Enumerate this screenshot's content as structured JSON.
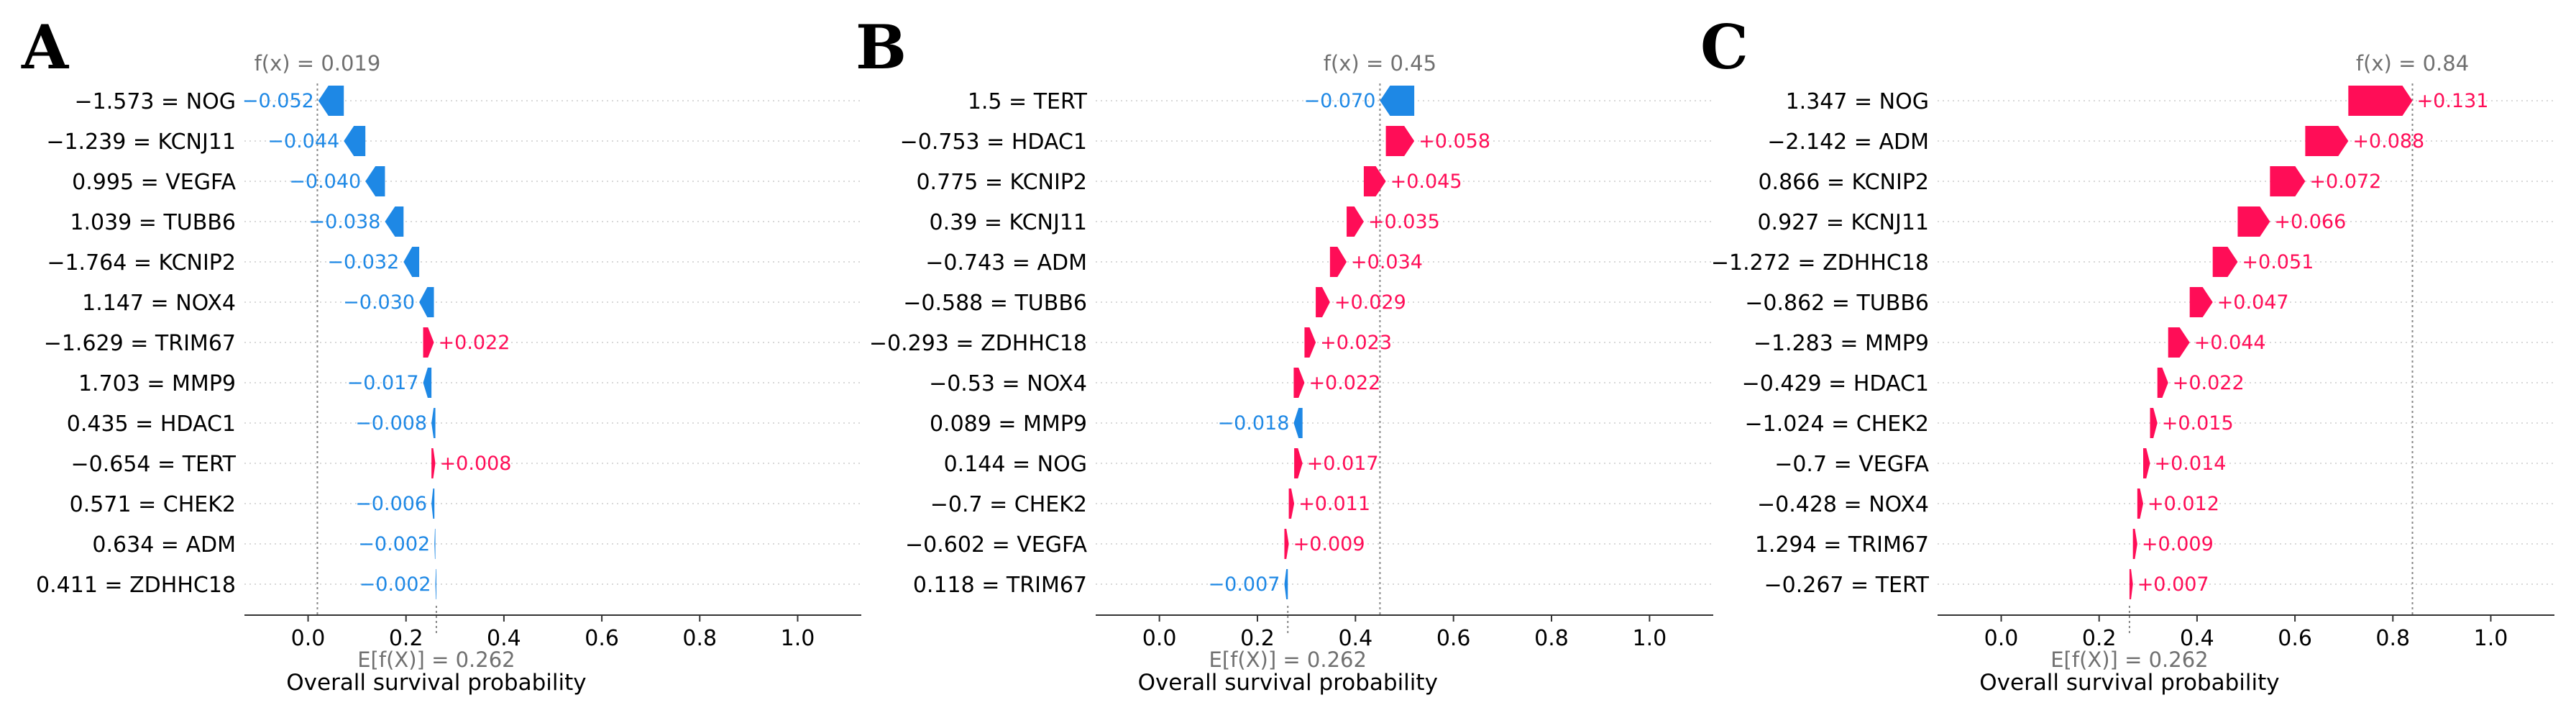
{
  "figure": {
    "panel_letters": [
      "A",
      "B",
      "C"
    ],
    "colors": {
      "positive": "#ff0d57",
      "negative": "#1e88e5",
      "axis": "#333333",
      "grid": "#dddddd",
      "label": "#000000",
      "annotation": "#707070"
    }
  },
  "chart_data": [
    {
      "type": "waterfall",
      "panel": "A",
      "fx_label": "f(x) = 0.019",
      "fx": 0.019,
      "base_label": "E[f(X)] = 0.262",
      "base": 0.262,
      "xlabel": "Overall survival probability",
      "xlim": [
        -0.13,
        1.13
      ],
      "xticks": [
        0.0,
        0.2,
        0.4,
        0.6,
        0.8,
        1.0
      ],
      "xtick_labels": [
        "0.0",
        "0.2",
        "0.4",
        "0.6",
        "0.8",
        "1.0"
      ],
      "features": [
        {
          "label": "−1.573 = NOG",
          "value": -0.052,
          "text": "−0.052"
        },
        {
          "label": "−1.239 = KCNJ11",
          "value": -0.044,
          "text": "−0.044"
        },
        {
          "label": "0.995 = VEGFA",
          "value": -0.04,
          "text": "−0.040"
        },
        {
          "label": "1.039 = TUBB6",
          "value": -0.038,
          "text": "−0.038"
        },
        {
          "label": "−1.764 = KCNIP2",
          "value": -0.032,
          "text": "−0.032"
        },
        {
          "label": "1.147 = NOX4",
          "value": -0.03,
          "text": "−0.030"
        },
        {
          "label": "−1.629 = TRIM67",
          "value": 0.022,
          "text": "+0.022"
        },
        {
          "label": "1.703 = MMP9",
          "value": -0.017,
          "text": "−0.017"
        },
        {
          "label": "0.435 = HDAC1",
          "value": -0.008,
          "text": "−0.008"
        },
        {
          "label": "−0.654 = TERT",
          "value": 0.008,
          "text": "+0.008"
        },
        {
          "label": "0.571 = CHEK2",
          "value": -0.006,
          "text": "−0.006"
        },
        {
          "label": "0.634 = ADM",
          "value": -0.002,
          "text": "−0.002"
        },
        {
          "label": "0.411 = ZDHHC18",
          "value": -0.002,
          "text": "−0.002"
        }
      ]
    },
    {
      "type": "waterfall",
      "panel": "B",
      "fx_label": "f(x) = 0.45",
      "fx": 0.45,
      "base_label": "E[f(X)] = 0.262",
      "base": 0.262,
      "xlabel": "Overall survival probability",
      "xlim": [
        -0.13,
        1.13
      ],
      "xticks": [
        0.0,
        0.2,
        0.4,
        0.6,
        0.8,
        1.0
      ],
      "xtick_labels": [
        "0.0",
        "0.2",
        "0.4",
        "0.6",
        "0.8",
        "1.0"
      ],
      "features": [
        {
          "label": "1.5 = TERT",
          "value": -0.07,
          "text": "−0.070"
        },
        {
          "label": "−0.753 = HDAC1",
          "value": 0.058,
          "text": "+0.058"
        },
        {
          "label": "0.775 = KCNIP2",
          "value": 0.045,
          "text": "+0.045"
        },
        {
          "label": "0.39 = KCNJ11",
          "value": 0.035,
          "text": "+0.035"
        },
        {
          "label": "−0.743 = ADM",
          "value": 0.034,
          "text": "+0.034"
        },
        {
          "label": "−0.588 = TUBB6",
          "value": 0.029,
          "text": "+0.029"
        },
        {
          "label": "−0.293 = ZDHHC18",
          "value": 0.023,
          "text": "+0.023"
        },
        {
          "label": "−0.53 = NOX4",
          "value": 0.022,
          "text": "+0.022"
        },
        {
          "label": "0.089 = MMP9",
          "value": -0.018,
          "text": "−0.018"
        },
        {
          "label": "0.144 = NOG",
          "value": 0.017,
          "text": "+0.017"
        },
        {
          "label": "−0.7 = CHEK2",
          "value": 0.011,
          "text": "+0.011"
        },
        {
          "label": "−0.602 = VEGFA",
          "value": 0.009,
          "text": "+0.009"
        },
        {
          "label": "0.118 = TRIM67",
          "value": -0.007,
          "text": "−0.007"
        }
      ]
    },
    {
      "type": "waterfall",
      "panel": "C",
      "fx_label": "f(x) = 0.84",
      "fx": 0.84,
      "base_label": "E[f(X)] = 0.262",
      "base": 0.262,
      "xlabel": "Overall survival probability",
      "xlim": [
        -0.13,
        1.13
      ],
      "xticks": [
        0.0,
        0.2,
        0.4,
        0.6,
        0.8,
        1.0
      ],
      "xtick_labels": [
        "0.0",
        "0.2",
        "0.4",
        "0.6",
        "0.8",
        "1.0"
      ],
      "features": [
        {
          "label": "1.347 = NOG",
          "value": 0.131,
          "text": "+0.131"
        },
        {
          "label": "−2.142 = ADM",
          "value": 0.088,
          "text": "+0.088"
        },
        {
          "label": "0.866 = KCNIP2",
          "value": 0.072,
          "text": "+0.072"
        },
        {
          "label": "0.927 = KCNJ11",
          "value": 0.066,
          "text": "+0.066"
        },
        {
          "label": "−1.272 = ZDHHC18",
          "value": 0.051,
          "text": "+0.051"
        },
        {
          "label": "−0.862 = TUBB6",
          "value": 0.047,
          "text": "+0.047"
        },
        {
          "label": "−1.283 = MMP9",
          "value": 0.044,
          "text": "+0.044"
        },
        {
          "label": "−0.429 = HDAC1",
          "value": 0.022,
          "text": "+0.022"
        },
        {
          "label": "−1.024 = CHEK2",
          "value": 0.015,
          "text": "+0.015"
        },
        {
          "label": "−0.7 = VEGFA",
          "value": 0.014,
          "text": "+0.014"
        },
        {
          "label": "−0.428 = NOX4",
          "value": 0.012,
          "text": "+0.012"
        },
        {
          "label": "1.294 = TRIM67",
          "value": 0.009,
          "text": "+0.009"
        },
        {
          "label": "−0.267 = TERT",
          "value": 0.007,
          "text": "+0.007"
        }
      ]
    }
  ]
}
